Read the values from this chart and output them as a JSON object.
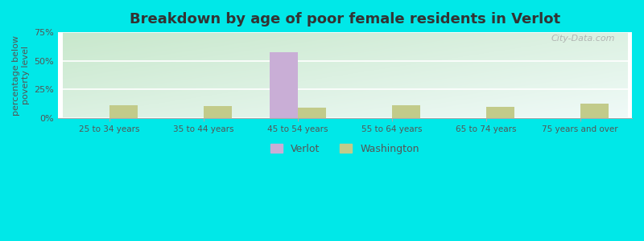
{
  "title": "Breakdown by age of poor female residents in Verlot",
  "categories": [
    "25 to 34 years",
    "35 to 44 years",
    "45 to 54 years",
    "55 to 64 years",
    "65 to 74 years",
    "75 years and over"
  ],
  "verlot_values": [
    0,
    0,
    57.5,
    0,
    0,
    0
  ],
  "washington_values": [
    11.5,
    10.5,
    9.5,
    11.0,
    10.0,
    12.5
  ],
  "verlot_color": "#c9aed6",
  "washington_color": "#c2cb8a",
  "ylabel": "percentage below\npoverty level",
  "ylim": [
    0,
    75
  ],
  "yticks": [
    0,
    25,
    50,
    75
  ],
  "yticklabels": [
    "0%",
    "25%",
    "50%",
    "75%"
  ],
  "bg_color_top_left": "#c8e8cc",
  "bg_color_bottom_right": "#f0faf8",
  "fig_bg_color": "#00e8e8",
  "title_fontsize": 13,
  "bar_width": 0.3,
  "watermark_text": "City-Data.com",
  "legend_verlot": "Verlot",
  "legend_washington": "Washington"
}
